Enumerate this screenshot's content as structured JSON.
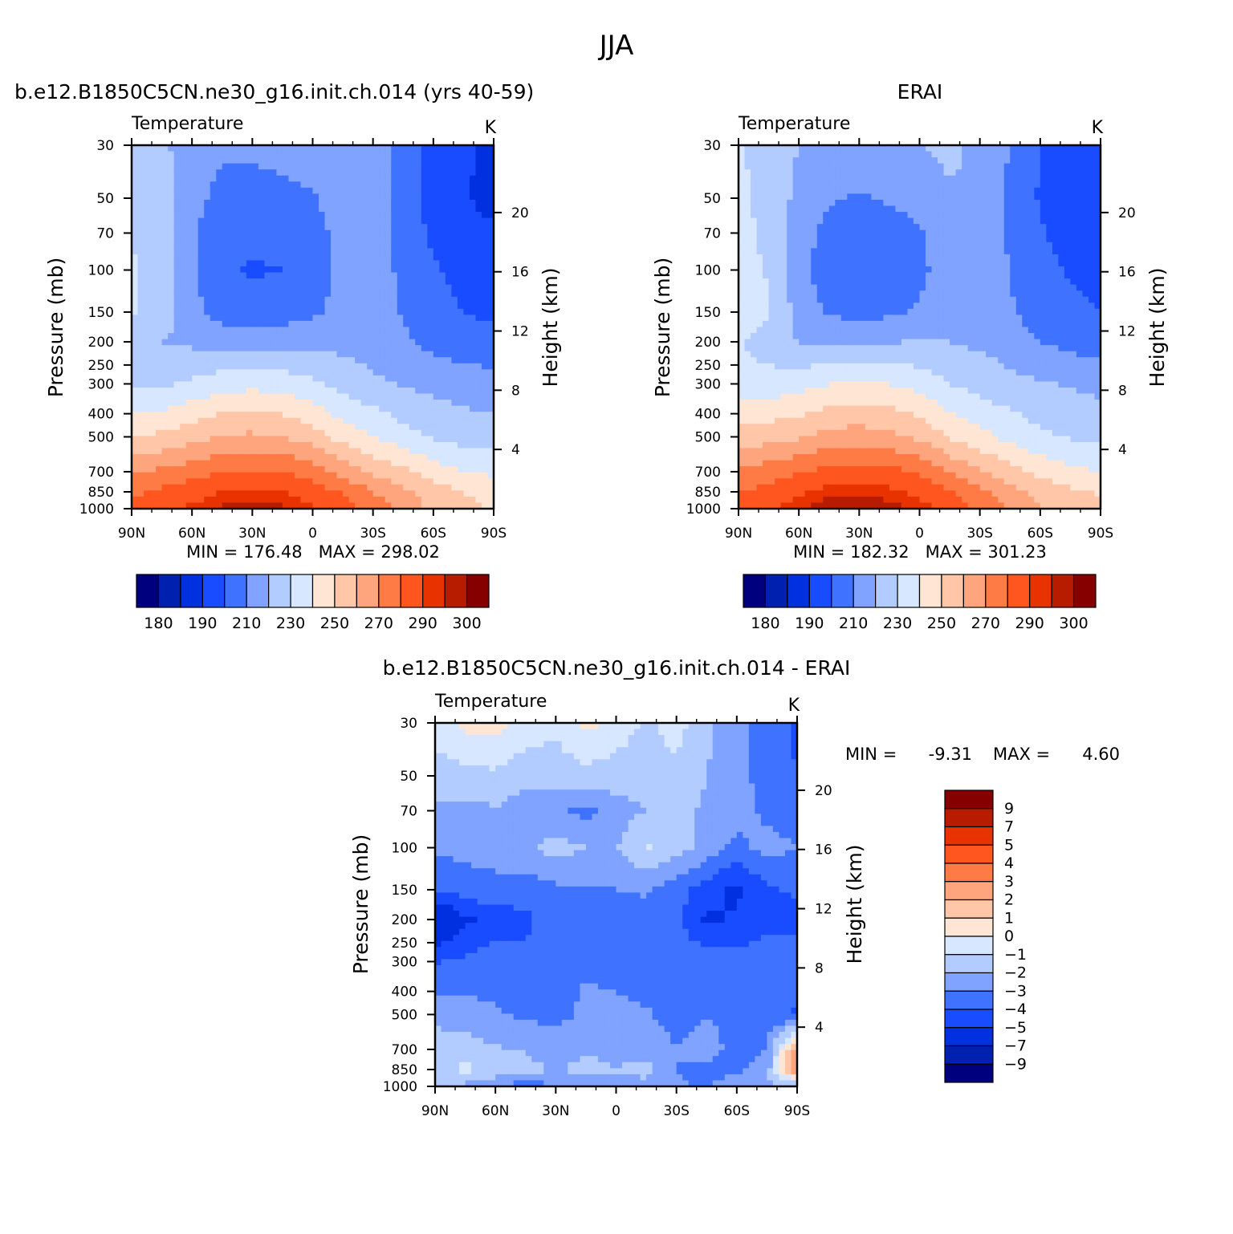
{
  "figure_title": "JJA",
  "colors": {
    "temp_palette": [
      "#00007f",
      "#0020b0",
      "#0030e0",
      "#1a4cff",
      "#3f73ff",
      "#7fa3ff",
      "#b3ccff",
      "#d6e7ff",
      "#ffe6d4",
      "#ffc6a8",
      "#ffa57e",
      "#ff7b45",
      "#ff5620",
      "#e83300",
      "#b81c00",
      "#870000"
    ],
    "diff_palette": [
      "#00007f",
      "#0020b0",
      "#0030e0",
      "#1a4cff",
      "#3f73ff",
      "#7fa3ff",
      "#b3ccff",
      "#d6e7ff",
      "#ffe6d4",
      "#ffc6a8",
      "#ffa57e",
      "#ff7b45",
      "#ff5620",
      "#e83300",
      "#b81c00",
      "#870000"
    ]
  },
  "chart_data": [
    {
      "type": "heatmap",
      "title": "b.e12.B1850C5CN.ne30_g16.init.ch.014 (yrs 40-59)",
      "left_label": "Temperature",
      "right_label": "K",
      "xlabel": "",
      "ylabel": "Pressure (mb)",
      "y2label": "Height (km)",
      "x_ticks": [
        "90N",
        "60N",
        "30N",
        "0",
        "30S",
        "60S",
        "90S"
      ],
      "y_ticks": [
        "30",
        "50",
        "70",
        "100",
        "150",
        "200",
        "250",
        "300",
        "400",
        "500",
        "700",
        "850",
        "1000"
      ],
      "y2_ticks": [
        "4",
        "8",
        "12",
        "16",
        "20"
      ],
      "stats": "MIN = 176.48   MAX = 298.02",
      "min": 176.48,
      "max": 298.02,
      "colorbar_labels": [
        "180",
        "190",
        "210",
        "230",
        "250",
        "270",
        "290",
        "300"
      ],
      "colorbar_orientation": "horizontal",
      "levels": [
        180,
        185,
        190,
        200,
        210,
        220,
        230,
        240,
        250,
        260,
        270,
        280,
        290,
        295,
        300
      ],
      "x_values": [
        90,
        60,
        30,
        0,
        -30,
        -60,
        -90
      ],
      "y_values": [
        30,
        50,
        70,
        100,
        150,
        200,
        300,
        500,
        700,
        850,
        1000
      ],
      "z": [
        [
          228,
          222,
          215,
          212,
          212,
          214,
          216,
          218,
          215,
          205,
          195,
          192,
          188
        ],
        [
          229,
          224,
          213,
          207,
          206,
          207,
          209,
          215,
          216,
          204,
          196,
          191,
          186
        ],
        [
          230,
          225,
          212,
          203,
          202,
          203,
          206,
          214,
          216,
          206,
          198,
          194,
          192
        ],
        [
          231,
          226,
          212,
          201,
          199,
          200,
          204,
          213,
          217,
          207,
          201,
          197,
          195
        ],
        [
          231,
          226,
          213,
          206,
          204,
          205,
          208,
          214,
          217,
          209,
          203,
          200,
          198
        ],
        [
          222,
          220,
          218,
          215,
          214,
          216,
          218,
          217,
          215,
          212,
          207,
          205,
          203
        ],
        [
          227,
          228,
          232,
          236,
          237,
          236,
          232,
          226,
          222,
          219,
          217,
          215,
          214
        ],
        [
          250,
          252,
          256,
          261,
          262,
          260,
          255,
          246,
          240,
          234,
          229,
          226,
          225
        ],
        [
          268,
          272,
          276,
          280,
          281,
          280,
          276,
          266,
          258,
          252,
          245,
          240,
          238
        ],
        [
          277,
          282,
          286,
          290,
          291,
          290,
          285,
          279,
          270,
          262,
          255,
          250,
          247
        ],
        [
          283,
          287,
          292,
          296,
          297,
          296,
          291,
          285,
          276,
          266,
          258,
          252,
          249
        ]
      ]
    },
    {
      "type": "heatmap",
      "title": "ERAI",
      "left_label": "Temperature",
      "right_label": "K",
      "xlabel": "",
      "ylabel": "Pressure (mb)",
      "y2label": "Height (km)",
      "x_ticks": [
        "90N",
        "60N",
        "30N",
        "0",
        "30S",
        "60S",
        "90S"
      ],
      "y_ticks": [
        "30",
        "50",
        "70",
        "100",
        "150",
        "200",
        "250",
        "300",
        "400",
        "500",
        "700",
        "850",
        "1000"
      ],
      "y2_ticks": [
        "4",
        "8",
        "12",
        "16",
        "20"
      ],
      "stats": "MIN = 182.32   MAX = 301.23",
      "min": 182.32,
      "max": 301.23,
      "colorbar_labels": [
        "180",
        "190",
        "210",
        "230",
        "250",
        "270",
        "290",
        "300"
      ],
      "colorbar_orientation": "horizontal",
      "levels": [
        180,
        185,
        190,
        200,
        210,
        220,
        230,
        240,
        250,
        260,
        270,
        280,
        290,
        295,
        300
      ],
      "x_values": [
        90,
        60,
        30,
        0,
        -30,
        -60,
        -90
      ],
      "y_values": [
        30,
        50,
        70,
        100,
        150,
        200,
        300,
        500,
        700,
        850,
        1000
      ],
      "z": [
        [
          231,
          226,
          220,
          217,
          216,
          218,
          220,
          222,
          218,
          210,
          200,
          196,
          192
        ],
        [
          232,
          227,
          217,
          211,
          209,
          211,
          213,
          219,
          219,
          207,
          199,
          194,
          190
        ],
        [
          233,
          228,
          215,
          206,
          205,
          206,
          209,
          217,
          219,
          208,
          201,
          196,
          194
        ],
        [
          234,
          229,
          214,
          204,
          202,
          203,
          207,
          216,
          219,
          210,
          203,
          199,
          197
        ],
        [
          236,
          231,
          216,
          209,
          207,
          208,
          211,
          218,
          219,
          211,
          205,
          202,
          200
        ],
        [
          231,
          225,
          220,
          218,
          217,
          219,
          221,
          220,
          218,
          215,
          210,
          207,
          205
        ],
        [
          234,
          234,
          236,
          240,
          241,
          240,
          236,
          230,
          226,
          223,
          221,
          219,
          217
        ],
        [
          254,
          256,
          259,
          264,
          265,
          263,
          258,
          249,
          243,
          237,
          232,
          229,
          228
        ],
        [
          271,
          275,
          279,
          283,
          284,
          283,
          279,
          269,
          261,
          254,
          247,
          242,
          240
        ],
        [
          279,
          284,
          288,
          293,
          294,
          292,
          287,
          281,
          272,
          264,
          257,
          252,
          249
        ],
        [
          285,
          289,
          294,
          299,
          300,
          298,
          293,
          287,
          278,
          268,
          260,
          254,
          251
        ]
      ]
    },
    {
      "type": "heatmap",
      "title": "b.e12.B1850C5CN.ne30_g16.init.ch.014 - ERAI",
      "left_label": "Temperature",
      "right_label": "K",
      "xlabel": "",
      "ylabel": "Pressure (mb)",
      "y2label": "Height (km)",
      "x_ticks": [
        "90N",
        "60N",
        "30N",
        "0",
        "30S",
        "60S",
        "90S"
      ],
      "y_ticks": [
        "30",
        "50",
        "70",
        "100",
        "150",
        "200",
        "250",
        "300",
        "400",
        "500",
        "700",
        "850",
        "1000"
      ],
      "y2_ticks": [
        "4",
        "8",
        "12",
        "16",
        "20"
      ],
      "stats_min_label": "MIN =",
      "stats_min_value": "-9.31",
      "stats_max_label": "MAX =",
      "stats_max_value": "4.60",
      "min": -9.31,
      "max": 4.6,
      "colorbar_labels": [
        "9",
        "7",
        "5",
        "4",
        "3",
        "2",
        "1",
        "0",
        "-1",
        "-2",
        "-3",
        "-4",
        "-5",
        "-7",
        "-9"
      ],
      "colorbar_orientation": "vertical",
      "levels": [
        -9,
        -7,
        -5,
        -4,
        -3,
        -2,
        -1,
        0,
        1,
        2,
        3,
        4,
        5,
        7,
        9
      ],
      "x_values": [
        90,
        60,
        30,
        0,
        -30,
        -60,
        -90
      ],
      "y_values": [
        30,
        50,
        70,
        100,
        150,
        200,
        300,
        500,
        700,
        850,
        1000
      ],
      "z": [
        [
          -0.5,
          0.3,
          0.4,
          -0.3,
          -0.8,
          0.3,
          -0.4,
          -1.2,
          -0.6,
          -1.8,
          -2.5,
          -3.5,
          -4.2
        ],
        [
          -1.5,
          -1.4,
          -1.2,
          -1.7,
          -1.5,
          -1.4,
          -1.5,
          -1.5,
          -1.2,
          -2.0,
          -2.6,
          -3.5,
          -4.0
        ],
        [
          -2.2,
          -2.3,
          -2.1,
          -2.5,
          -2.8,
          -3.3,
          -2.4,
          -2.0,
          -1.7,
          -2.2,
          -2.4,
          -3.3,
          -3.5
        ],
        [
          -2.8,
          -2.7,
          -2.6,
          -2.2,
          -1.6,
          -2.0,
          -2.1,
          -0.9,
          -1.5,
          -2.3,
          -3.4,
          -2.6,
          -3.0
        ],
        [
          -4.0,
          -3.5,
          -3.3,
          -3.6,
          -3.2,
          -3.1,
          -3.0,
          -2.9,
          -3.6,
          -4.6,
          -5.2,
          -4.2,
          -3.8
        ],
        [
          -6.6,
          -5.2,
          -4.6,
          -4.2,
          -3.4,
          -3.6,
          -3.8,
          -3.2,
          -3.7,
          -5.2,
          -4.9,
          -4.3,
          -4.5
        ],
        [
          -4.1,
          -3.8,
          -3.4,
          -3.8,
          -3.3,
          -3.1,
          -3.3,
          -3.5,
          -3.5,
          -3.4,
          -3.6,
          -3.3,
          -3.2
        ],
        [
          -2.2,
          -2.6,
          -2.9,
          -3.2,
          -3.3,
          -2.8,
          -2.8,
          -2.9,
          -3.4,
          -3.0,
          -3.4,
          -3.6,
          -4.2
        ],
        [
          -1.6,
          -1.4,
          -1.9,
          -2.1,
          -2.6,
          -2.3,
          -2.2,
          -2.4,
          -3.0,
          -2.6,
          -3.3,
          -3.0,
          2.8
        ],
        [
          -1.5,
          -0.7,
          -1.2,
          -1.6,
          -2.1,
          -1.5,
          -2.0,
          -1.6,
          -3.0,
          -3.3,
          -3.2,
          -2.6,
          3.8
        ],
        [
          -2.0,
          -2.2,
          -3.0,
          -3.6,
          -3.0,
          -2.6,
          -2.3,
          -2.4,
          -2.9,
          -3.1,
          -2.4,
          -2.0,
          -2.4
        ]
      ]
    }
  ]
}
